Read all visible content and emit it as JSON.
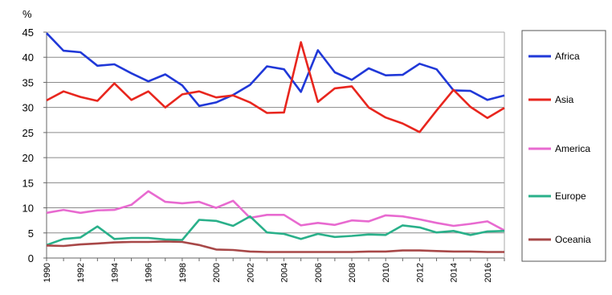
{
  "chart_data": {
    "type": "line",
    "ylabel": "%",
    "xlabel": "",
    "ylim": [
      0,
      45
    ],
    "yticks": [
      0,
      5,
      10,
      15,
      20,
      25,
      30,
      35,
      40,
      45
    ],
    "xlim": [
      1990,
      2017
    ],
    "xticks": [
      1990,
      1992,
      1994,
      1996,
      1998,
      2000,
      2002,
      2004,
      2006,
      2008,
      2010,
      2012,
      2014,
      2016
    ],
    "x": [
      1990,
      1991,
      1992,
      1993,
      1994,
      1995,
      1996,
      1997,
      1998,
      1999,
      2000,
      2001,
      2002,
      2003,
      2004,
      2005,
      2006,
      2007,
      2008,
      2009,
      2010,
      2011,
      2012,
      2013,
      2014,
      2015,
      2016,
      2017
    ],
    "grid": "horizontal",
    "legend": "right",
    "series": [
      {
        "name": "Africa",
        "color": "#2038d8",
        "values": [
          44.8,
          41.3,
          41.0,
          38.3,
          38.6,
          36.8,
          35.2,
          36.6,
          34.4,
          30.3,
          31.0,
          32.5,
          34.5,
          38.2,
          37.6,
          33.1,
          41.4,
          37.0,
          35.5,
          37.8,
          36.4,
          36.5,
          38.7,
          37.6,
          33.4,
          33.3,
          31.5,
          32.4
        ]
      },
      {
        "name": "Asia",
        "color": "#e8261e",
        "values": [
          31.4,
          33.2,
          32.1,
          31.3,
          34.8,
          31.5,
          33.2,
          30.0,
          32.6,
          33.2,
          32.0,
          32.4,
          31.0,
          28.9,
          29.0,
          43.0,
          31.1,
          33.8,
          34.2,
          30.0,
          28.0,
          26.8,
          25.1,
          29.4,
          33.5,
          30.1,
          27.9,
          29.9
        ]
      },
      {
        "name": "America",
        "color": "#e86ad0",
        "values": [
          9.0,
          9.6,
          9.0,
          9.5,
          9.6,
          10.6,
          13.3,
          11.2,
          10.9,
          11.2,
          10.0,
          11.4,
          8.0,
          8.6,
          8.6,
          6.5,
          7.0,
          6.6,
          7.5,
          7.3,
          8.5,
          8.3,
          7.7,
          7.0,
          6.4,
          6.8,
          7.3,
          5.5
        ]
      },
      {
        "name": "Europe",
        "color": "#2ab08a",
        "values": [
          2.6,
          3.8,
          4.1,
          6.3,
          3.8,
          4.0,
          4.0,
          3.7,
          3.6,
          7.6,
          7.4,
          6.4,
          8.3,
          5.1,
          4.8,
          3.8,
          4.8,
          4.2,
          4.4,
          4.7,
          4.6,
          6.5,
          6.1,
          5.1,
          5.4,
          4.6,
          5.3,
          5.4
        ]
      },
      {
        "name": "Oceania",
        "color": "#a84848",
        "values": [
          2.5,
          2.4,
          2.7,
          2.9,
          3.1,
          3.2,
          3.2,
          3.3,
          3.2,
          2.6,
          1.7,
          1.6,
          1.3,
          1.2,
          1.2,
          1.2,
          1.2,
          1.2,
          1.2,
          1.3,
          1.3,
          1.5,
          1.5,
          1.4,
          1.3,
          1.3,
          1.2,
          1.2
        ]
      }
    ]
  }
}
